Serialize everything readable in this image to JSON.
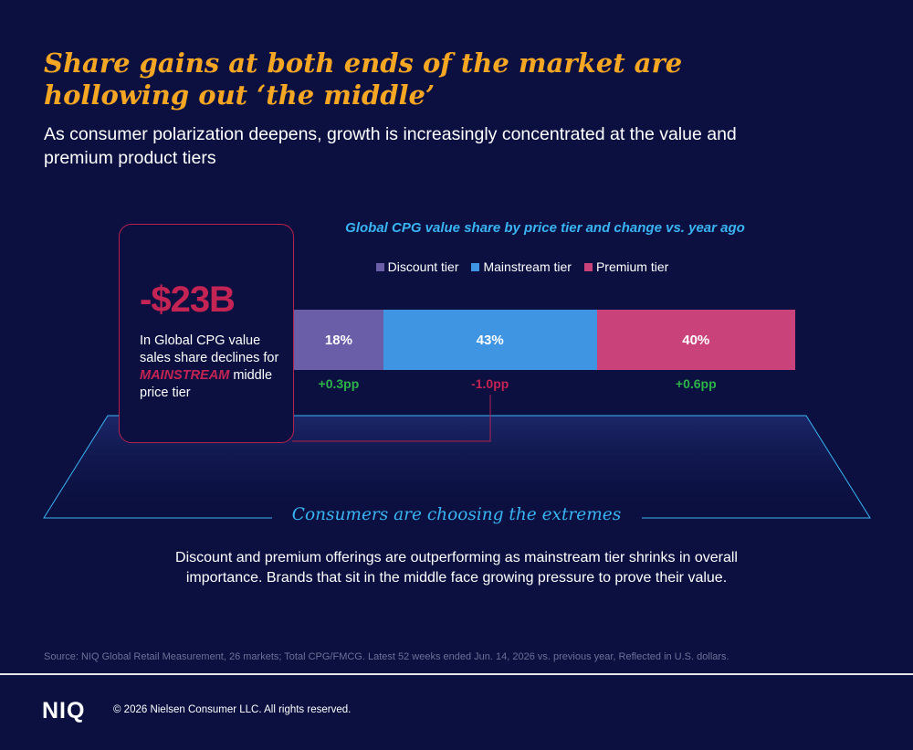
{
  "header": {
    "title": "Share gains at both ends of the market are hollowing out ‘the middle’",
    "subtitle": "As consumer polarization deepens, growth is increasingly concentrated at the value and premium product tiers"
  },
  "callout": {
    "value": "-$23B",
    "desc_prefix": "In Global CPG value sales share declines for",
    "desc_highlight": "MAINSTREAM",
    "desc_suffix": "middle price tier"
  },
  "chart_data": {
    "type": "bar",
    "orientation": "horizontal-stacked",
    "title": "Global CPG value share by price tier and change vs. year ago",
    "categories": [
      "Discount tier",
      "Mainstream tier",
      "Premium tier"
    ],
    "series": [
      {
        "name": "Discount tier",
        "value": 18,
        "label": "18%",
        "change": "+0.3pp",
        "color": "#6b5ea8"
      },
      {
        "name": "Mainstream tier",
        "value": 43,
        "label": "43%",
        "change": "-1.0pp",
        "color": "#4095e3"
      },
      {
        "name": "Premium tier",
        "value": 40,
        "label": "40%",
        "change": "+0.6pp",
        "color": "#c9437a"
      }
    ],
    "legend": "top",
    "change_colors": {
      "positive": "#2eb24a",
      "negative": "#c42454"
    }
  },
  "conclusion": {
    "heading": "Consumers are choosing the extremes",
    "body": "Discount and premium offerings are outperforming as mainstream tier shrinks in overall importance. Brands that sit in the middle face growing pressure to prove their value."
  },
  "footer": {
    "source": "Source: NIQ Global Retail Measurement, 26 markets; Total CPG/FMCG. Latest 52 weeks ended Jun. 14, 2026 vs. previous year, Reflected in U.S. dollars.",
    "logo": "NIQ",
    "copyright": "© 2026 Nielsen Consumer LLC. All rights reserved."
  },
  "colors": {
    "background": "#0b1040",
    "title": "#f5a623",
    "accent_blue": "#3ab4f2",
    "accent_red": "#c42454"
  }
}
